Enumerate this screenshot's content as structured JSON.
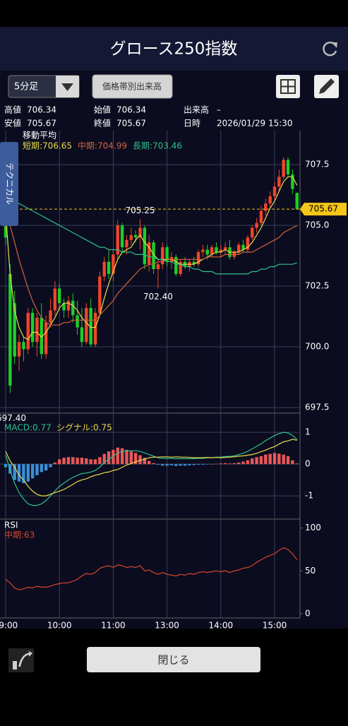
{
  "header": {
    "title": "グロース250指数"
  },
  "controls": {
    "period": "5分足",
    "price_volume": "価格帯別出来高"
  },
  "info": [
    {
      "label": "高値",
      "value": "706.34"
    },
    {
      "label": "始値",
      "value": "706.34"
    },
    {
      "label": "出来高",
      "value": "–"
    },
    {
      "label": "安値",
      "value": "705.67"
    },
    {
      "label": "終値",
      "value": "705.67"
    },
    {
      "label": "日時",
      "value": "2026/01/29 15:30"
    }
  ],
  "side_tab": "テクニカル",
  "footer": {
    "close": "閉じる"
  },
  "chart_data": [
    {
      "type": "candlestick",
      "title": "移動平均",
      "categories": [
        "09:00",
        null,
        null,
        null,
        null,
        null,
        null,
        null,
        null,
        null,
        null,
        null,
        "10:00",
        null,
        null,
        null,
        null,
        null,
        null,
        null,
        null,
        null,
        null,
        null,
        "11:00",
        null,
        null,
        null,
        null,
        null,
        null,
        null,
        null,
        null,
        null,
        null,
        "13:00",
        null,
        null,
        null,
        null,
        null,
        null,
        null,
        null,
        null,
        null,
        null,
        "14:00",
        null,
        null,
        null,
        null,
        null,
        null,
        null,
        null,
        null,
        null,
        null,
        "15:00",
        null,
        null,
        null,
        null,
        null
      ],
      "open": [
        705.3,
        703.0,
        701.8,
        699.6,
        700.2,
        699.9,
        701.4,
        700.2,
        701.2,
        699.7,
        701.0,
        701.5,
        702.4,
        701.8,
        701.5,
        701.9,
        701.3,
        700.8,
        700.2,
        701.6,
        700.1,
        701.4,
        702.9,
        703.5,
        703.0,
        703.8,
        705.0,
        704.1,
        704.4,
        704.6,
        704.5,
        704.9,
        703.4,
        704.3,
        703.2,
        703.4,
        704.1,
        703.5,
        703.7,
        703.0,
        703.5,
        703.3,
        703.5,
        703.4,
        703.9,
        704.0,
        703.8,
        704.1,
        703.9,
        704.0,
        704.1,
        703.7,
        703.9,
        704.2,
        704.0,
        704.5,
        704.9,
        705.1,
        705.6,
        705.9,
        706.2,
        706.6,
        707.0,
        707.7,
        707.1,
        706.34
      ],
      "high": [
        705.7,
        703.4,
        702.3,
        700.5,
        700.4,
        701.6,
        701.6,
        701.4,
        701.8,
        701.3,
        702.0,
        702.7,
        702.6,
        702.0,
        702.1,
        702.2,
        701.9,
        701.6,
        701.8,
        702.0,
        701.6,
        703.1,
        703.7,
        704.0,
        704.0,
        705.2,
        705.1,
        704.6,
        704.9,
        704.8,
        705.25,
        705.0,
        704.6,
        704.4,
        703.6,
        704.3,
        704.2,
        703.9,
        703.8,
        703.6,
        703.7,
        703.6,
        703.7,
        704.0,
        704.2,
        704.2,
        704.2,
        704.3,
        704.2,
        704.3,
        704.4,
        704.0,
        704.3,
        704.4,
        704.6,
        705.0,
        705.3,
        705.8,
        706.1,
        706.4,
        706.8,
        707.3,
        707.8,
        707.8,
        707.3,
        706.34
      ],
      "low": [
        704.2,
        698.1,
        699.3,
        699.0,
        699.4,
        699.7,
        700.0,
        699.6,
        699.5,
        699.5,
        700.8,
        701.3,
        701.5,
        701.2,
        701.2,
        701.0,
        700.5,
        700.0,
        700.1,
        700.0,
        700.0,
        701.3,
        702.7,
        702.8,
        702.7,
        703.6,
        703.9,
        703.8,
        704.2,
        704.3,
        704.0,
        703.2,
        703.1,
        703.0,
        702.4,
        703.2,
        703.3,
        703.2,
        702.9,
        702.9,
        703.2,
        703.1,
        703.3,
        703.3,
        703.7,
        703.6,
        703.7,
        703.8,
        703.7,
        703.8,
        703.6,
        703.6,
        703.8,
        703.9,
        703.9,
        704.4,
        704.7,
        705.0,
        705.4,
        705.7,
        706.0,
        706.4,
        706.9,
        707.0,
        706.3,
        705.67
      ],
      "close": [
        704.5,
        698.4,
        699.6,
        700.2,
        699.9,
        701.4,
        700.2,
        701.2,
        699.7,
        701.0,
        701.5,
        702.4,
        701.8,
        701.5,
        701.9,
        701.3,
        700.8,
        700.2,
        701.6,
        700.1,
        701.4,
        702.9,
        703.5,
        703.0,
        703.8,
        705.0,
        704.1,
        704.4,
        704.6,
        704.5,
        704.9,
        703.4,
        704.3,
        703.2,
        703.4,
        704.1,
        703.5,
        703.7,
        703.0,
        703.5,
        703.3,
        703.5,
        703.4,
        703.9,
        704.0,
        703.8,
        704.1,
        703.9,
        704.0,
        704.1,
        703.7,
        703.9,
        704.2,
        704.0,
        704.5,
        704.9,
        705.1,
        705.6,
        705.9,
        706.2,
        706.6,
        707.0,
        707.7,
        707.1,
        706.5,
        705.67
      ],
      "up_color": "#f0452a",
      "down_color": "#1ccf25",
      "series": [
        {
          "name": "短期:706.65",
          "color": "#e8dc4c",
          "values": [
            705.5,
            703.0,
            701.5,
            700.8,
            700.4,
            700.3,
            700.6,
            700.6,
            700.4,
            700.6,
            700.9,
            701.2,
            701.6,
            701.8,
            701.8,
            701.7,
            701.5,
            701.2,
            701.0,
            700.8,
            700.8,
            701.3,
            702.0,
            702.6,
            703.1,
            703.6,
            703.9,
            704.0,
            704.1,
            704.4,
            704.6,
            704.3,
            704.1,
            703.8,
            703.6,
            703.6,
            703.6,
            703.6,
            703.5,
            703.4,
            703.4,
            703.4,
            703.4,
            703.5,
            703.6,
            703.7,
            703.8,
            703.9,
            703.9,
            704.0,
            703.9,
            703.9,
            703.9,
            704.0,
            704.1,
            704.3,
            704.6,
            704.9,
            705.3,
            705.7,
            706.0,
            706.4,
            706.8,
            707.0,
            707.0,
            706.65
          ]
        },
        {
          "name": "中期:704.99",
          "color": "#d4623c",
          "values": [
            705.6,
            705.0,
            704.3,
            703.6,
            703.0,
            702.4,
            701.9,
            701.5,
            701.2,
            701.0,
            700.9,
            700.9,
            700.9,
            701.0,
            701.0,
            701.1,
            701.1,
            701.1,
            701.1,
            701.1,
            701.1,
            701.3,
            701.5,
            701.7,
            701.9,
            702.2,
            702.4,
            702.6,
            702.8,
            703.0,
            703.2,
            703.3,
            703.4,
            703.4,
            703.5,
            703.5,
            703.6,
            703.6,
            703.6,
            703.6,
            703.6,
            703.6,
            703.6,
            703.6,
            703.6,
            703.7,
            703.7,
            703.7,
            703.7,
            703.8,
            703.8,
            703.8,
            703.8,
            703.9,
            703.9,
            703.9,
            704.0,
            704.1,
            704.2,
            704.3,
            704.4,
            704.5,
            704.7,
            704.8,
            704.9,
            704.99
          ]
        },
        {
          "name": "長期:703.46",
          "color": "#2fc18e",
          "values": [
            706.2,
            706.1,
            706.0,
            705.9,
            705.8,
            705.7,
            705.6,
            705.5,
            705.4,
            705.3,
            705.2,
            705.1,
            705.0,
            704.9,
            704.8,
            704.7,
            704.6,
            704.5,
            704.4,
            704.3,
            704.2,
            704.1,
            704.1,
            704.0,
            704.0,
            704.0,
            703.9,
            703.9,
            703.9,
            703.8,
            703.8,
            703.8,
            703.7,
            703.7,
            703.6,
            703.6,
            703.5,
            703.5,
            703.4,
            703.4,
            703.3,
            703.3,
            703.2,
            703.2,
            703.1,
            703.1,
            703.1,
            703.0,
            703.0,
            703.0,
            703.0,
            703.0,
            703.0,
            703.0,
            703.0,
            703.1,
            703.1,
            703.2,
            703.2,
            703.3,
            703.3,
            703.4,
            703.4,
            703.4,
            703.4,
            703.46
          ]
        }
      ],
      "annotations": [
        {
          "value": 705.25,
          "label": "705.25"
        },
        {
          "value": 702.4,
          "label": "702.40"
        },
        {
          "value": 697.4,
          "label": "697.40"
        }
      ],
      "last_price": {
        "value": 705.67,
        "label": "705.67",
        "color": "#f5c518"
      },
      "ylim": [
        697.27,
        708.9
      ],
      "yticks": [
        697.5,
        {
          "value": 700,
          "label": "700.0"
        },
        702.5,
        {
          "value": 705,
          "label": "705.0"
        },
        707.5
      ],
      "grid": true
    },
    {
      "type": "macd",
      "histogram": {
        "up_color": "#e85858",
        "down_color": "#3a8fd8",
        "values": [
          -0.1,
          -0.3,
          -0.5,
          -0.55,
          -0.6,
          -0.55,
          -0.45,
          -0.35,
          -0.25,
          -0.2,
          -0.1,
          0.05,
          0.15,
          0.2,
          0.22,
          0.22,
          0.2,
          0.2,
          0.18,
          0.15,
          0.15,
          0.22,
          0.32,
          0.4,
          0.45,
          0.52,
          0.5,
          0.45,
          0.4,
          0.35,
          0.28,
          0.2,
          0.1,
          0.03,
          -0.02,
          -0.05,
          -0.05,
          -0.04,
          -0.06,
          -0.05,
          -0.05,
          -0.04,
          -0.03,
          -0.02,
          -0.02,
          -0.01,
          0,
          0.01,
          0.02,
          0.03,
          0.02,
          0.03,
          0.05,
          0.08,
          0.12,
          0.18,
          0.22,
          0.25,
          0.3,
          0.32,
          0.35,
          0.33,
          0.3,
          0.25,
          0.12,
          0.02
        ]
      },
      "series": [
        {
          "name": "MACD:0.77",
          "color": "#2fc18e",
          "values": [
            0.3,
            -0.2,
            -0.6,
            -0.9,
            -1.1,
            -1.25,
            -1.3,
            -1.3,
            -1.25,
            -1.15,
            -1.0,
            -0.85,
            -0.7,
            -0.6,
            -0.5,
            -0.42,
            -0.35,
            -0.3,
            -0.28,
            -0.25,
            -0.2,
            -0.1,
            0.05,
            0.15,
            0.25,
            0.35,
            0.4,
            0.42,
            0.42,
            0.42,
            0.4,
            0.35,
            0.3,
            0.25,
            0.2,
            0.18,
            0.18,
            0.18,
            0.17,
            0.17,
            0.17,
            0.17,
            0.17,
            0.18,
            0.18,
            0.2,
            0.2,
            0.22,
            0.22,
            0.24,
            0.24,
            0.26,
            0.3,
            0.34,
            0.4,
            0.48,
            0.56,
            0.64,
            0.74,
            0.82,
            0.9,
            0.96,
            1.0,
            0.98,
            0.9,
            0.77
          ]
        },
        {
          "name": "シグナル:0.75",
          "color": "#e8dc4c",
          "values": [
            0.4,
            0.1,
            -0.1,
            -0.35,
            -0.5,
            -0.7,
            -0.85,
            -0.95,
            -1.0,
            -1.0,
            -0.95,
            -0.9,
            -0.85,
            -0.8,
            -0.72,
            -0.64,
            -0.55,
            -0.5,
            -0.46,
            -0.4,
            -0.35,
            -0.32,
            -0.27,
            -0.25,
            -0.2,
            -0.17,
            -0.1,
            -0.03,
            0.02,
            0.07,
            0.12,
            0.15,
            0.2,
            0.22,
            0.22,
            0.23,
            0.23,
            0.22,
            0.23,
            0.22,
            0.22,
            0.21,
            0.2,
            0.2,
            0.2,
            0.21,
            0.2,
            0.21,
            0.2,
            0.21,
            0.22,
            0.23,
            0.25,
            0.26,
            0.28,
            0.3,
            0.34,
            0.39,
            0.44,
            0.5,
            0.55,
            0.63,
            0.7,
            0.73,
            0.78,
            0.75
          ]
        }
      ],
      "ylim": [
        -1.73,
        1.27
      ],
      "yticks": [
        1,
        0,
        -1
      ],
      "grid": true
    },
    {
      "type": "line",
      "title": "RSI",
      "series": [
        {
          "name": "中期:63",
          "color": "#d8452e",
          "values": [
            40,
            36,
            30,
            28,
            29,
            31,
            30,
            32,
            31,
            31,
            32,
            34,
            35,
            36,
            36,
            38,
            40,
            44,
            47,
            46,
            48,
            53,
            55,
            56,
            54,
            57,
            56,
            54,
            55,
            54,
            56,
            50,
            51,
            48,
            46,
            48,
            46,
            45,
            44,
            46,
            45,
            47,
            46,
            48,
            49,
            48,
            49,
            50,
            49,
            50,
            48,
            50,
            51,
            53,
            54,
            56,
            60,
            63,
            66,
            68,
            70,
            74,
            77,
            75,
            70,
            63
          ]
        }
      ],
      "ylim": [
        -5,
        108
      ],
      "yticks": [
        100,
        50,
        0
      ],
      "grid": false
    }
  ]
}
